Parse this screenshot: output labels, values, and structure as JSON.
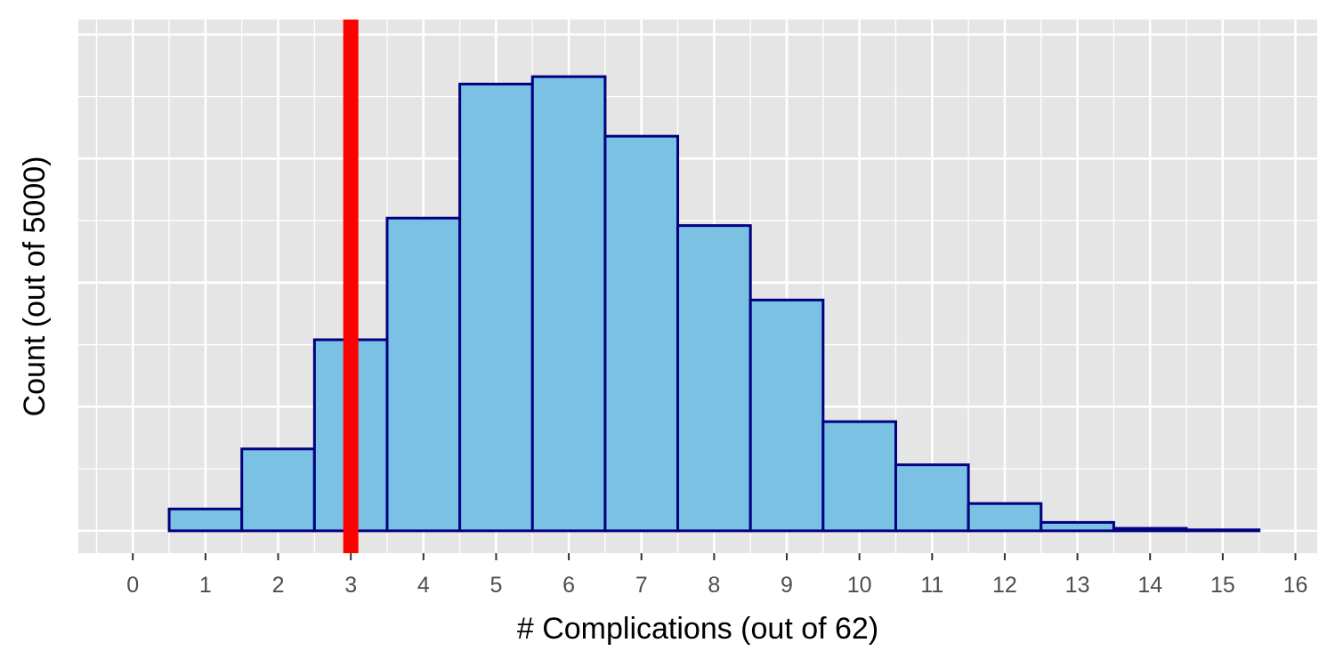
{
  "chart_data": {
    "type": "bar",
    "title": "",
    "xlabel": "# Complications (out of 62)",
    "ylabel": "Count (out of 5000)",
    "x_ticks": [
      0,
      1,
      2,
      3,
      4,
      5,
      6,
      7,
      8,
      9,
      10,
      11,
      12,
      13,
      14,
      15,
      16
    ],
    "xlim": [
      -0.75,
      16.3
    ],
    "ylim": [
      -45,
      1030
    ],
    "y_ticks_shown": false,
    "grid": true,
    "bins": [
      {
        "x": 1,
        "count": 44
      },
      {
        "x": 2,
        "count": 165
      },
      {
        "x": 3,
        "count": 385
      },
      {
        "x": 4,
        "count": 630
      },
      {
        "x": 5,
        "count": 900
      },
      {
        "x": 6,
        "count": 915
      },
      {
        "x": 7,
        "count": 795
      },
      {
        "x": 8,
        "count": 615
      },
      {
        "x": 9,
        "count": 465
      },
      {
        "x": 10,
        "count": 220
      },
      {
        "x": 11,
        "count": 133
      },
      {
        "x": 12,
        "count": 55
      },
      {
        "x": 13,
        "count": 17
      },
      {
        "x": 14,
        "count": 5
      },
      {
        "x": 15,
        "count": 2
      }
    ],
    "reference_line": {
      "x": 3.0,
      "color": "#ff0000"
    },
    "colors": {
      "panel_background": "#e5e5e5",
      "grid": "#ffffff",
      "bar_fill": "#7ac1e4",
      "bar_stroke": "#000080"
    }
  }
}
